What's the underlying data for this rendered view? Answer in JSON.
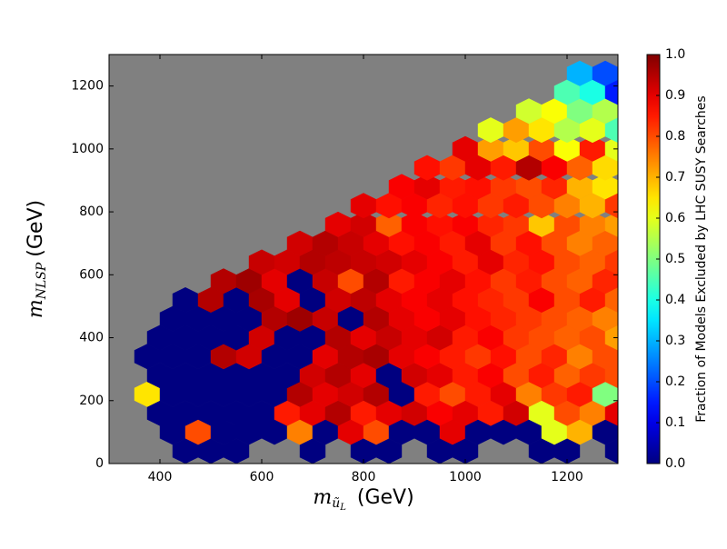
{
  "chart_data": {
    "type": "hexbin",
    "ylabel_main": "m",
    "ylabel_sub": "NLSP",
    "ylabel_unit": "(GeV)",
    "xlabel_main": "m",
    "xlabel_sub": "ũ",
    "xlabel_subsub": "L",
    "xlabel_unit": "(GeV)",
    "colorbar_label": "Fraction of Models Excluded by LHC SUSY Searches",
    "colormap": "jet",
    "background": "#808080",
    "xlim": [
      300,
      1300
    ],
    "ylim": [
      0,
      1300
    ],
    "clim": [
      0,
      1
    ],
    "xticks": [
      400,
      600,
      800,
      1000,
      1200
    ],
    "yticks": [
      0,
      200,
      400,
      600,
      800,
      1000,
      1200
    ],
    "cticks": [
      {
        "value": 0,
        "label": "0.0"
      },
      {
        "value": 0.1,
        "label": "0.1"
      },
      {
        "value": 0.2,
        "label": "0.2"
      },
      {
        "value": 0.3,
        "label": "0.3"
      },
      {
        "value": 0.4,
        "label": "0.4"
      },
      {
        "value": 0.5,
        "label": "0.5"
      },
      {
        "value": 0.6,
        "label": "0.6"
      },
      {
        "value": 0.7,
        "label": "0.7"
      },
      {
        "value": 0.8,
        "label": "0.8"
      },
      {
        "value": 0.9,
        "label": "0.9"
      },
      {
        "value": 1,
        "label": "1.0"
      }
    ],
    "rows": [
      {
        "y": 40,
        "x": [
          450,
          500,
          550,
          700,
          800,
          850,
          950,
          1000,
          1150,
          1200,
          1300
        ],
        "values": [
          0,
          0,
          0,
          0,
          0,
          0,
          0,
          0,
          0,
          0,
          0
        ]
      },
      {
        "y": 100,
        "x": [
          425,
          475,
          525,
          575,
          625,
          675,
          725,
          775,
          825,
          875,
          925,
          975,
          1025,
          1075,
          1125,
          1175,
          1225,
          1275
        ],
        "values": [
          0,
          0.8,
          0,
          0,
          0,
          0.75,
          0,
          0.9,
          0.8,
          0,
          0,
          0.9,
          0,
          0,
          0,
          0.6,
          0.7,
          0
        ]
      },
      {
        "y": 160,
        "x": [
          400,
          450,
          500,
          550,
          600,
          650,
          700,
          750,
          800,
          850,
          900,
          950,
          1000,
          1050,
          1100,
          1150,
          1200,
          1250,
          1300
        ],
        "values": [
          0,
          0,
          0,
          0,
          0,
          0.85,
          0.9,
          0.95,
          0.85,
          0.9,
          0.92,
          0.88,
          0.9,
          0.85,
          0.92,
          0.6,
          0.8,
          0.75,
          0.9
        ]
      },
      {
        "y": 220,
        "x": [
          375,
          425,
          475,
          525,
          575,
          625,
          675,
          725,
          775,
          825,
          875,
          925,
          975,
          1025,
          1075,
          1125,
          1175,
          1225,
          1275
        ],
        "values": [
          0.65,
          0,
          0,
          0,
          0,
          0,
          0.95,
          0.9,
          0.92,
          0.95,
          0,
          0.85,
          0.8,
          0.85,
          0.9,
          0.75,
          0.82,
          0.85,
          0.5
        ]
      },
      {
        "y": 280,
        "x": [
          400,
          450,
          500,
          550,
          600,
          650,
          700,
          750,
          800,
          850,
          900,
          950,
          1000,
          1050,
          1100,
          1150,
          1200,
          1250,
          1300
        ],
        "values": [
          0,
          0,
          0,
          0,
          0,
          0,
          0.92,
          0.95,
          0.9,
          0,
          0.92,
          0.9,
          0.85,
          0.88,
          0.8,
          0.85,
          0.78,
          0.82,
          0.8
        ]
      },
      {
        "y": 340,
        "x": [
          375,
          425,
          475,
          525,
          575,
          625,
          675,
          725,
          775,
          825,
          875,
          925,
          975,
          1025,
          1075,
          1125,
          1175,
          1225,
          1275
        ],
        "values": [
          0,
          0,
          0,
          0.95,
          0.92,
          0,
          0,
          0.9,
          0.95,
          0.96,
          0.9,
          0.88,
          0.85,
          0.82,
          0.86,
          0.8,
          0.84,
          0.75,
          0.8
        ]
      },
      {
        "y": 400,
        "x": [
          400,
          450,
          500,
          550,
          600,
          650,
          700,
          750,
          800,
          850,
          900,
          950,
          1000,
          1050,
          1100,
          1150,
          1200,
          1250,
          1300
        ],
        "values": [
          0,
          0,
          0,
          0,
          0.92,
          0,
          0,
          0.95,
          0.9,
          0.93,
          0.9,
          0.92,
          0.85,
          0.88,
          0.82,
          0.8,
          0.78,
          0.8,
          0.72
        ]
      },
      {
        "y": 460,
        "x": [
          425,
          475,
          525,
          575,
          625,
          675,
          725,
          775,
          825,
          875,
          925,
          975,
          1025,
          1075,
          1125,
          1175,
          1225,
          1275
        ],
        "values": [
          0,
          0,
          0,
          0,
          0.95,
          0.97,
          0.93,
          0,
          0.95,
          0.9,
          0.88,
          0.9,
          0.86,
          0.84,
          0.82,
          0.8,
          0.78,
          0.75
        ]
      },
      {
        "y": 520,
        "x": [
          450,
          500,
          550,
          600,
          650,
          700,
          750,
          800,
          850,
          900,
          950,
          1000,
          1050,
          1100,
          1150,
          1200,
          1250,
          1300
        ],
        "values": [
          0,
          0.95,
          0,
          0.96,
          0.9,
          0,
          0.92,
          0.94,
          0.9,
          0.88,
          0.9,
          0.86,
          0.84,
          0.82,
          0.88,
          0.8,
          0.85,
          0.78
        ]
      },
      {
        "y": 580,
        "x": [
          525,
          575,
          625,
          675,
          725,
          775,
          825,
          875,
          925,
          975,
          1025,
          1075,
          1125,
          1175,
          1225,
          1275
        ],
        "values": [
          0.95,
          0.97,
          0.9,
          0,
          0.93,
          0.8,
          0.95,
          0.85,
          0.88,
          0.9,
          0.86,
          0.82,
          0.85,
          0.8,
          0.78,
          0.84
        ]
      },
      {
        "y": 640,
        "x": [
          600,
          650,
          700,
          750,
          800,
          850,
          900,
          950,
          1000,
          1050,
          1100,
          1150,
          1200,
          1250,
          1300
        ],
        "values": [
          0.93,
          0.92,
          0.95,
          0.94,
          0.93,
          0.92,
          0.9,
          0.88,
          0.85,
          0.9,
          0.84,
          0.86,
          0.8,
          0.78,
          0.82
        ]
      },
      {
        "y": 700,
        "x": [
          675,
          725,
          775,
          825,
          875,
          925,
          975,
          1025,
          1075,
          1125,
          1175,
          1225,
          1275
        ],
        "values": [
          0.92,
          0.95,
          0.93,
          0.9,
          0.86,
          0.88,
          0.85,
          0.9,
          0.82,
          0.86,
          0.8,
          0.75,
          0.78
        ]
      },
      {
        "y": 760,
        "x": [
          750,
          800,
          850,
          900,
          950,
          1000,
          1050,
          1100,
          1150,
          1200,
          1250,
          1300
        ],
        "values": [
          0.9,
          0.92,
          0.78,
          0.88,
          0.86,
          0.88,
          0.84,
          0.82,
          0.68,
          0.8,
          0.75,
          0.72
        ]
      },
      {
        "y": 820,
        "x": [
          800,
          850,
          900,
          950,
          1000,
          1050,
          1100,
          1150,
          1200,
          1250,
          1300
        ],
        "values": [
          0.9,
          0.86,
          0.88,
          0.84,
          0.86,
          0.82,
          0.85,
          0.8,
          0.75,
          0.7,
          0.82
        ]
      },
      {
        "y": 880,
        "x": [
          875,
          925,
          975,
          1025,
          1075,
          1125,
          1175,
          1225,
          1275
        ],
        "values": [
          0.88,
          0.9,
          0.85,
          0.86,
          0.82,
          0.8,
          0.84,
          0.7,
          0.65
        ]
      },
      {
        "y": 940,
        "x": [
          925,
          975,
          1025,
          1075,
          1125,
          1175,
          1225,
          1275
        ],
        "values": [
          0.86,
          0.82,
          0.9,
          0.85,
          0.95,
          0.88,
          0.78,
          0.66
        ]
      },
      {
        "y": 1000,
        "x": [
          1000,
          1050,
          1100,
          1150,
          1200,
          1250,
          1300
        ],
        "values": [
          0.9,
          0.72,
          0.68,
          0.8,
          0.62,
          0.85,
          0.6
        ]
      },
      {
        "y": 1060,
        "x": [
          1050,
          1100,
          1150,
          1200,
          1250,
          1300
        ],
        "values": [
          0.6,
          0.72,
          0.65,
          0.55,
          0.6,
          0.45
        ]
      },
      {
        "y": 1120,
        "x": [
          1125,
          1175,
          1225,
          1275
        ],
        "values": [
          0.58,
          0.62,
          0.5,
          0.55
        ]
      },
      {
        "y": 1180,
        "x": [
          1200,
          1250,
          1300
        ],
        "values": [
          0.45,
          0.4,
          0.15
        ]
      },
      {
        "y": 1240,
        "x": [
          1225,
          1275
        ],
        "values": [
          0.3,
          0.2
        ]
      }
    ]
  }
}
